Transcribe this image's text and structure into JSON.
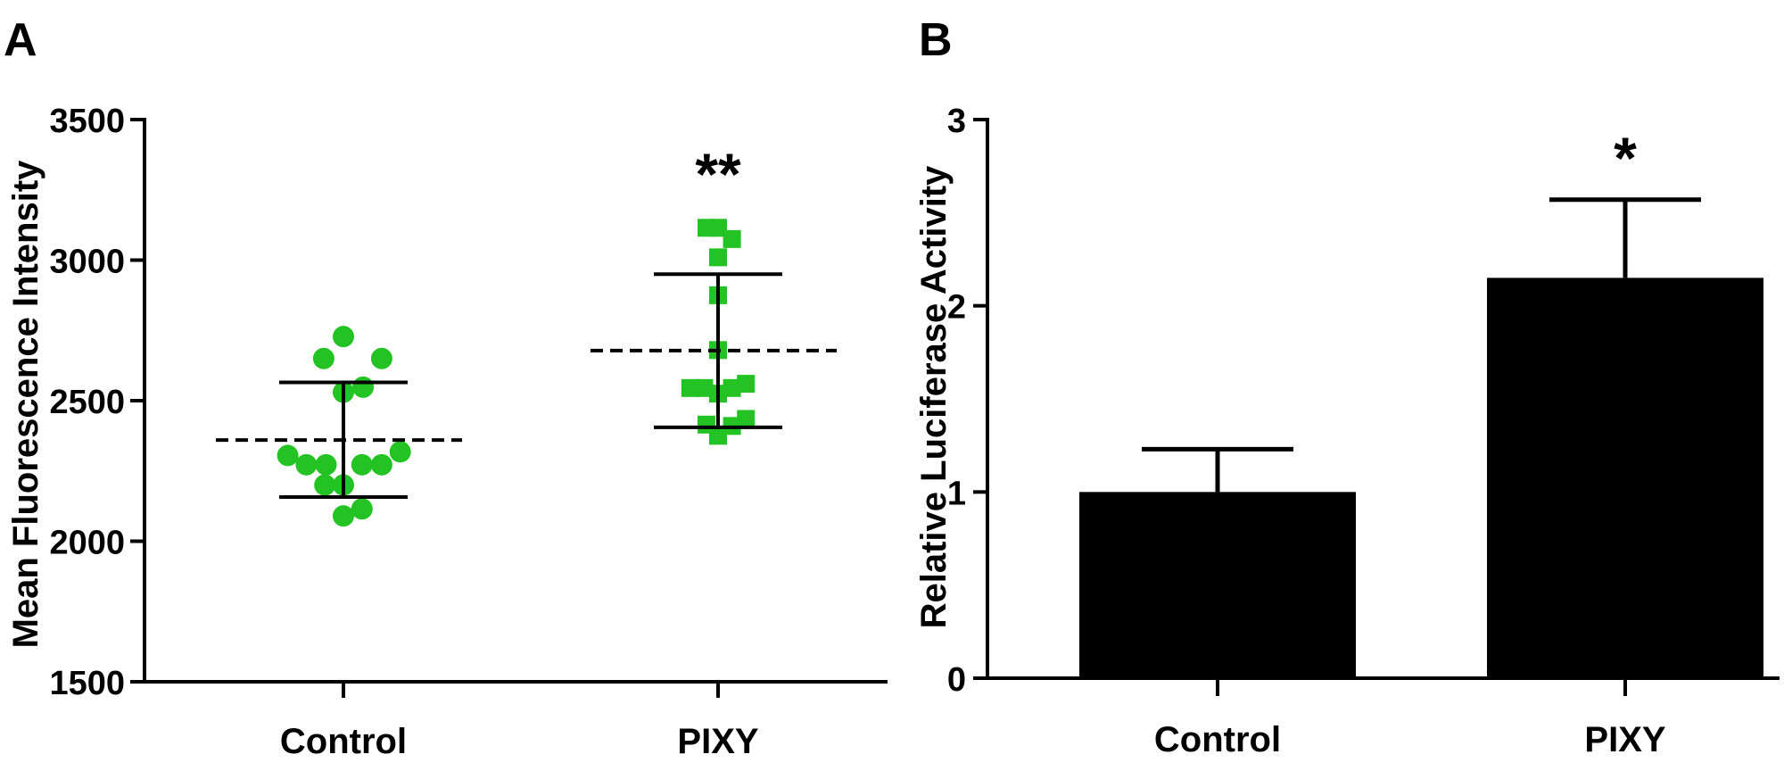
{
  "chart_data": [
    {
      "panel_label": "A",
      "type": "scatter",
      "ylabel": "Mean Fluorescence Intensity",
      "ylim": [
        1500,
        3500
      ],
      "yticks": [
        "1500",
        "2000",
        "2500",
        "3000",
        "3500"
      ],
      "categories": [
        "Control",
        "PIXY"
      ],
      "marker_color": "#22c322",
      "groups": [
        {
          "name": "Control",
          "marker": "circle",
          "points": [
            {
              "offset": -0.48,
              "value": 2305
            },
            {
              "offset": -0.32,
              "value": 2272
            },
            {
              "offset": -0.15,
              "value": 2272
            },
            {
              "offset": 0.16,
              "value": 2272
            },
            {
              "offset": 0.33,
              "value": 2272
            },
            {
              "offset": 0.49,
              "value": 2318
            },
            {
              "offset": -0.16,
              "value": 2200
            },
            {
              "offset": 0.0,
              "value": 2200
            },
            {
              "offset": -0.17,
              "value": 2650
            },
            {
              "offset": 0.33,
              "value": 2650
            },
            {
              "offset": 0.0,
              "value": 2728
            },
            {
              "offset": 0.0,
              "value": 2530
            },
            {
              "offset": 0.17,
              "value": 2548
            },
            {
              "offset": 0.0,
              "value": 2090
            },
            {
              "offset": 0.16,
              "value": 2115
            }
          ],
          "mean": 2360,
          "sd_upper": 2565,
          "sd_lower": 2157
        },
        {
          "name": "PIXY",
          "marker": "square",
          "points": [
            {
              "offset": -0.1,
              "value": 3115
            },
            {
              "offset": 0.0,
              "value": 3115
            },
            {
              "offset": 0.12,
              "value": 3075
            },
            {
              "offset": 0.0,
              "value": 3010
            },
            {
              "offset": 0.0,
              "value": 2875
            },
            {
              "offset": 0.0,
              "value": 2680
            },
            {
              "offset": -0.24,
              "value": 2545
            },
            {
              "offset": -0.12,
              "value": 2545
            },
            {
              "offset": 0.12,
              "value": 2545
            },
            {
              "offset": 0.24,
              "value": 2560
            },
            {
              "offset": 0.0,
              "value": 2525
            },
            {
              "offset": -0.1,
              "value": 2415
            },
            {
              "offset": 0.12,
              "value": 2410
            },
            {
              "offset": 0.24,
              "value": 2435
            },
            {
              "offset": 0.0,
              "value": 2375
            }
          ],
          "mean": 2678,
          "sd_upper": 2950,
          "sd_lower": 2405
        }
      ],
      "annotations": [
        {
          "category": "PIXY",
          "text": "**"
        }
      ]
    },
    {
      "panel_label": "B",
      "type": "bar",
      "ylabel": "Relative Luciferase Activity",
      "ylim": [
        0,
        3
      ],
      "yticks": [
        "0",
        "1",
        "2",
        "3"
      ],
      "categories": [
        "Control",
        "PIXY"
      ],
      "values": [
        1.0,
        2.15
      ],
      "error_upper": [
        1.23,
        2.57
      ],
      "bar_color": "#000000",
      "annotations": [
        {
          "category": "PIXY",
          "text": "*"
        }
      ]
    }
  ]
}
